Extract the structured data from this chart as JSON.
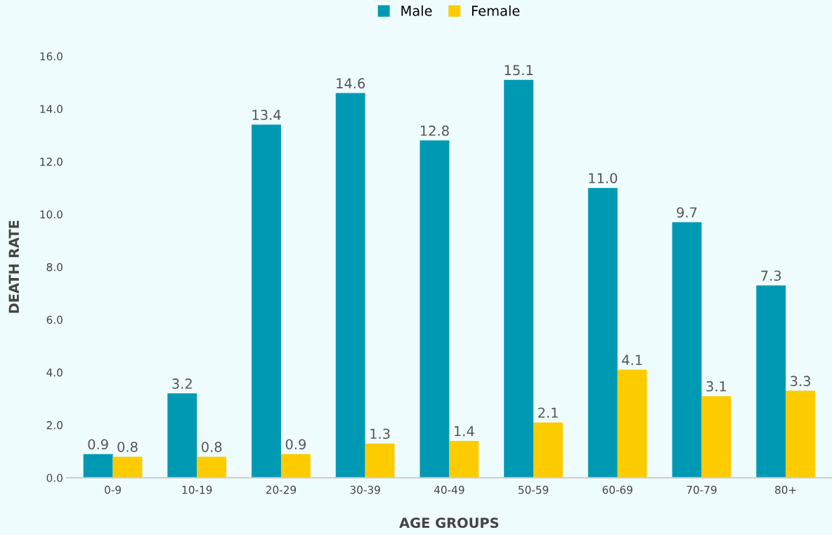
{
  "chart_data": {
    "type": "bar",
    "xlabel": "AGE GROUPS",
    "ylabel": "DEATH RATE",
    "categories": [
      "0-9",
      "10-19",
      "20-29",
      "30-39",
      "40-49",
      "50-59",
      "60-69",
      "70-79",
      "80+"
    ],
    "series": [
      {
        "name": "Male",
        "color": "#0099b4",
        "values": [
          0.9,
          3.2,
          13.4,
          14.6,
          12.8,
          15.1,
          11.0,
          9.7,
          7.3
        ],
        "value_labels": [
          "0.9",
          "3.2",
          "13.4",
          "14.6",
          "12.8",
          "15.1",
          "11.0",
          "9.7",
          "7.3"
        ]
      },
      {
        "name": "Female",
        "color": "#fccb00",
        "values": [
          0.8,
          0.8,
          0.9,
          1.3,
          1.4,
          2.1,
          4.1,
          3.1,
          3.3
        ],
        "value_labels": [
          "0.8",
          "0.8",
          "0.9",
          "1.3",
          "1.4",
          "2.1",
          "4.1",
          "3.1",
          "3.3"
        ]
      }
    ],
    "ylim": [
      0,
      16
    ],
    "yticks": [
      {
        "value": 0,
        "label": "0.0"
      },
      {
        "value": 2,
        "label": "2.0"
      },
      {
        "value": 4,
        "label": "4.0"
      },
      {
        "value": 6,
        "label": "6.0"
      },
      {
        "value": 8,
        "label": "8.0"
      },
      {
        "value": 10,
        "label": "10.0"
      },
      {
        "value": 12,
        "label": "12.0"
      },
      {
        "value": 14,
        "label": "14.0"
      },
      {
        "value": 16,
        "label": "16.0"
      }
    ],
    "grid": false,
    "legend": "top"
  }
}
